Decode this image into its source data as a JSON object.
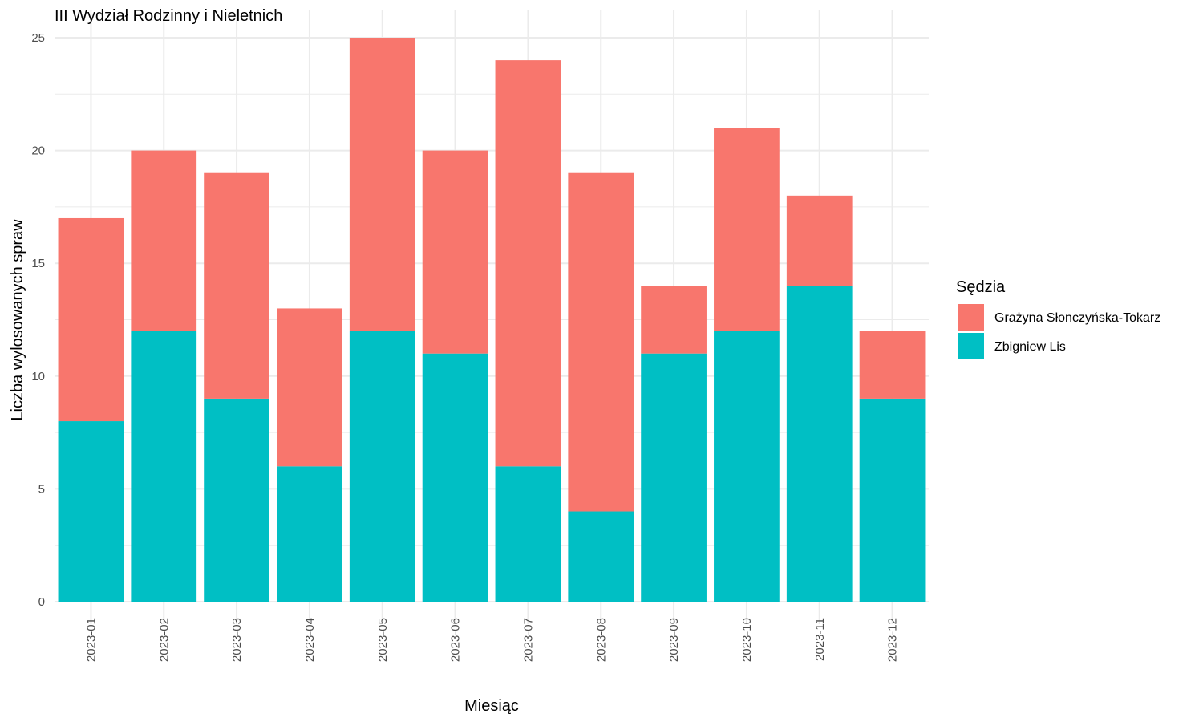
{
  "chart_data": {
    "type": "bar",
    "stacked": true,
    "title": "III Wydział Rodzinny i Nieletnich",
    "xlabel": "Miesiąc",
    "ylabel": "Liczba wylosowanych spraw",
    "ylim": [
      0,
      25
    ],
    "yticks": [
      "0",
      "5",
      "10",
      "15",
      "20",
      "25"
    ],
    "grid": true,
    "legend_title": "Sędzia",
    "legend_position": "right",
    "categories": [
      "2023-01",
      "2023-02",
      "2023-03",
      "2023-04",
      "2023-05",
      "2023-06",
      "2023-07",
      "2023-08",
      "2023-09",
      "2023-10",
      "2023-11",
      "2023-12"
    ],
    "series": [
      {
        "name": "Zbigniew Lis",
        "color": "#00bfc4",
        "values": [
          8,
          12,
          9,
          6,
          12,
          11,
          6,
          4,
          11,
          12,
          14,
          9
        ]
      },
      {
        "name": "Grażyna Słonczyńska-Tokarz",
        "color": "#f8766d",
        "values": [
          9,
          8,
          10,
          7,
          13,
          9,
          18,
          15,
          3,
          9,
          4,
          3
        ]
      }
    ],
    "legend_order": [
      "Grażyna Słonczyńska-Tokarz",
      "Zbigniew Lis"
    ]
  }
}
